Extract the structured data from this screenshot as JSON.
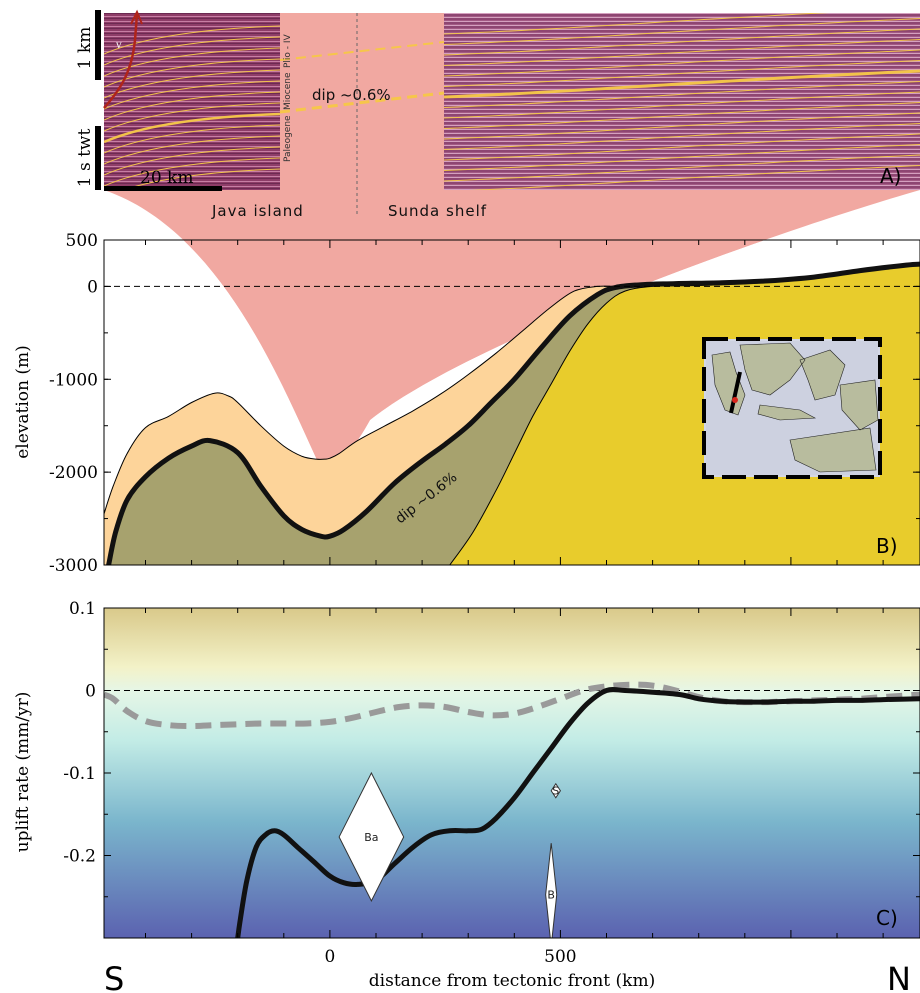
{
  "chart_data": [
    {
      "panel": "A)",
      "type": "image",
      "scale_labels": [
        "1 km",
        "1 s twt"
      ],
      "scale_bar": "20 km",
      "stratigraphy": [
        "Plio - IV",
        "Miocene",
        "Paleogene"
      ],
      "v_label": "v",
      "dip_label": "dip ~0.6%",
      "region_labels": [
        "Java island",
        "Sunda shelf"
      ]
    },
    {
      "panel": "B)",
      "type": "area",
      "ylabel": "elevation (m)",
      "ylim": [
        -3000,
        500
      ],
      "xlim": [
        -490,
        1280
      ],
      "yticks": [
        500,
        0,
        -1000,
        -2000,
        -3000
      ],
      "ytick_labels": [
        "500",
        "0",
        "-1000",
        "-2000",
        "-3000"
      ],
      "reference_line": 0,
      "annotation": "dip ~0.6%",
      "series": [
        {
          "role": "black profile",
          "x": [
            -480,
            -465,
            -440,
            -400,
            -350,
            -300,
            -260,
            -200,
            -150,
            -100,
            -60,
            -20,
            0,
            30,
            80,
            140,
            200,
            250,
            300,
            350,
            400,
            460,
            520,
            580,
            620,
            680,
            750,
            850,
            950,
            1050,
            1150,
            1250,
            1280
          ],
          "y": [
            -3000,
            -2650,
            -2300,
            -2050,
            -1850,
            -1720,
            -1660,
            -1790,
            -2150,
            -2470,
            -2620,
            -2690,
            -2690,
            -2620,
            -2420,
            -2120,
            -1880,
            -1700,
            -1500,
            -1250,
            -1000,
            -650,
            -320,
            -90,
            -10,
            20,
            30,
            40,
            60,
            100,
            170,
            230,
            240
          ]
        },
        {
          "role": "orange envelope top",
          "x": [
            -490,
            -470,
            -440,
            -400,
            -350,
            -300,
            -250,
            -220,
            -200,
            -150,
            -100,
            -60,
            -30,
            -10,
            0,
            20,
            60,
            120,
            180,
            240,
            300,
            360,
            420,
            480,
            530,
            580,
            620
          ],
          "y": [
            -2450,
            -2150,
            -1800,
            -1520,
            -1400,
            -1250,
            -1150,
            -1180,
            -1250,
            -1500,
            -1720,
            -1830,
            -1860,
            -1860,
            -1850,
            -1800,
            -1660,
            -1500,
            -1340,
            -1160,
            -950,
            -720,
            -470,
            -220,
            -50,
            0,
            0
          ]
        },
        {
          "role": "yellow block top",
          "x": [
            260,
            310,
            360,
            400,
            440,
            480,
            520,
            560,
            600,
            640,
            700,
            800,
            900,
            1000,
            1100,
            1200,
            1280
          ],
          "y": [
            -3000,
            -2650,
            -2200,
            -1800,
            -1400,
            -1050,
            -700,
            -400,
            -180,
            -50,
            0,
            10,
            30,
            60,
            120,
            200,
            250
          ]
        }
      ],
      "inset": "map of Indonesia with profile location"
    },
    {
      "panel": "C)",
      "type": "line",
      "xlabel": "distance from tectonic front (km)",
      "ylabel": "uplift rate (mm/yr)",
      "ylim": [
        -0.3,
        0.1
      ],
      "xlim": [
        -490,
        1280
      ],
      "xticks": [
        0,
        500
      ],
      "xtick_labels": [
        "0",
        "500"
      ],
      "yticks": [
        0.1,
        0,
        -0.1,
        -0.2
      ],
      "ytick_labels": [
        "0.1",
        "0",
        "-0.1",
        "-0.2"
      ],
      "reference_line": 0,
      "series": [
        {
          "role": "solid black",
          "x": [
            -200,
            -195,
            -180,
            -160,
            -140,
            -120,
            -100,
            -70,
            -30,
            0,
            30,
            60,
            100,
            140,
            180,
            220,
            260,
            300,
            330,
            360,
            400,
            440,
            480,
            520,
            560,
            600,
            640,
            700,
            760,
            800,
            850,
            900,
            950,
            1000,
            1050,
            1100,
            1150,
            1200,
            1280
          ],
          "y": [
            -0.3,
            -0.28,
            -0.23,
            -0.19,
            -0.175,
            -0.17,
            -0.175,
            -0.19,
            -0.21,
            -0.225,
            -0.233,
            -0.235,
            -0.23,
            -0.21,
            -0.19,
            -0.175,
            -0.17,
            -0.17,
            -0.168,
            -0.155,
            -0.13,
            -0.1,
            -0.07,
            -0.04,
            -0.015,
            0.0,
            0.0,
            -0.002,
            -0.005,
            -0.01,
            -0.013,
            -0.014,
            -0.014,
            -0.013,
            -0.013,
            -0.012,
            -0.012,
            -0.011,
            -0.01
          ]
        },
        {
          "role": "dashed grey",
          "x": [
            -490,
            -470,
            -440,
            -400,
            -350,
            -300,
            -250,
            -200,
            -150,
            -100,
            -50,
            0,
            50,
            100,
            150,
            200,
            250,
            300,
            350,
            400,
            450,
            500,
            550,
            600,
            650,
            700,
            750,
            800,
            850,
            900,
            950,
            1000,
            1050,
            1100,
            1150,
            1200,
            1280
          ],
          "y": [
            -0.005,
            -0.01,
            -0.025,
            -0.037,
            -0.042,
            -0.043,
            -0.042,
            -0.041,
            -0.04,
            -0.04,
            -0.04,
            -0.038,
            -0.033,
            -0.026,
            -0.02,
            -0.018,
            -0.02,
            -0.026,
            -0.03,
            -0.028,
            -0.02,
            -0.01,
            0.0,
            0.005,
            0.007,
            0.006,
            0.0,
            -0.008,
            -0.013,
            -0.014,
            -0.014,
            -0.013,
            -0.012,
            -0.011,
            -0.01,
            -0.008,
            -0.005
          ]
        }
      ],
      "markers": [
        {
          "label": "Ba",
          "x": 90,
          "y_top": -0.1,
          "y_bot": -0.255,
          "half_width_km": 70
        },
        {
          "label": "S",
          "x": 490,
          "y_top": -0.113,
          "y_bot": -0.13,
          "half_width_km": 10
        },
        {
          "label": "B",
          "x": 480,
          "y_top": -0.185,
          "y_bot": -0.31,
          "half_width_km": 12
        }
      ],
      "end_labels": [
        "S",
        "N"
      ]
    }
  ],
  "colors": {
    "seismic": "#8b3a64",
    "salmon": "#f1a8a1",
    "orange": "#fdd49a",
    "olive": "#a7a26e",
    "yellow": "#e8cc2c",
    "horizon": "#f6c64a",
    "gradient_top": "#d9c98a",
    "gradient_mid": "#d4f4ea",
    "gradient_bottom": "#5b6bb4"
  }
}
